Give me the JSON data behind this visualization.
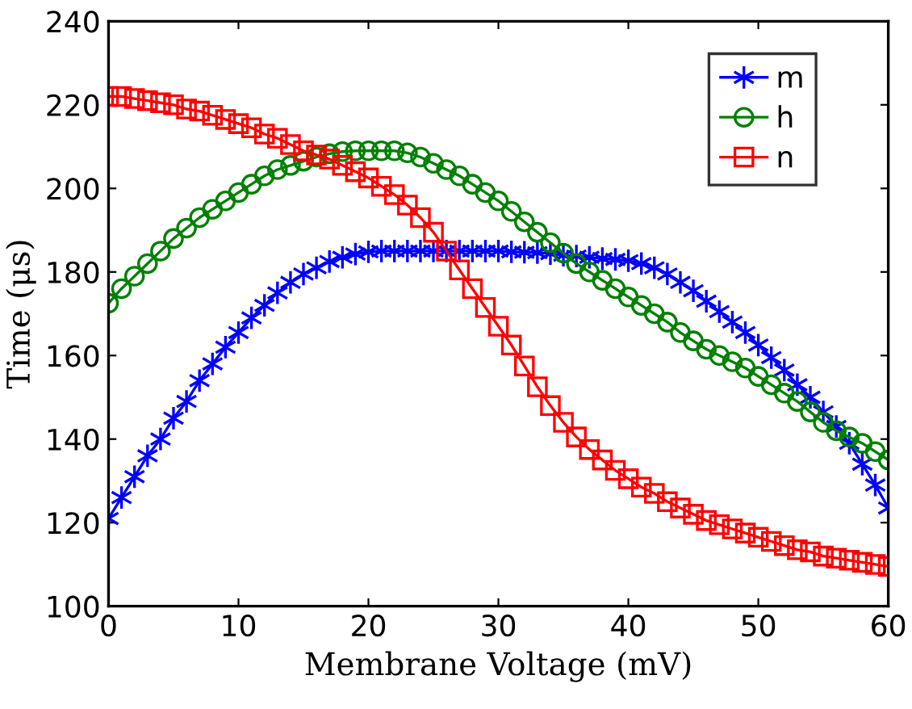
{
  "chart_data": {
    "type": "line",
    "xlabel": "Membrane Voltage (mV)",
    "ylabel": "Time (μs)",
    "x": [
      0,
      1,
      2,
      3,
      4,
      5,
      6,
      7,
      8,
      9,
      10,
      11,
      12,
      13,
      14,
      15,
      16,
      17,
      18,
      19,
      20,
      21,
      22,
      23,
      24,
      25,
      26,
      27,
      28,
      29,
      30,
      31,
      32,
      33,
      34,
      35,
      36,
      37,
      38,
      39,
      40,
      41,
      42,
      43,
      44,
      45,
      46,
      47,
      48,
      49,
      50,
      51,
      52,
      53,
      54,
      55,
      56,
      57,
      58,
      59,
      60
    ],
    "xlim": [
      0,
      60
    ],
    "xticks": [
      0,
      10,
      20,
      30,
      40,
      50,
      60
    ],
    "ylim": [
      100,
      240
    ],
    "yticks": [
      100,
      120,
      140,
      160,
      180,
      200,
      220,
      240
    ],
    "grid": false,
    "legend": "top right",
    "line_style": "solid",
    "series": [
      {
        "name": "m",
        "color": "#0000ff",
        "marker": "cross",
        "values": [
          121,
          126,
          131,
          136,
          140,
          145,
          149,
          154,
          158,
          162,
          165.5,
          169,
          172,
          175,
          177.5,
          179.5,
          181,
          182.5,
          183.5,
          184.3,
          184.8,
          185,
          185,
          185,
          185,
          185,
          185,
          185,
          185,
          185,
          185,
          184.8,
          184.7,
          184.6,
          184.4,
          184,
          183.8,
          183.5,
          183.2,
          183,
          182.7,
          182,
          181,
          179.5,
          177.5,
          175.5,
          173,
          170.5,
          168,
          165.5,
          162.5,
          159.5,
          156.5,
          153,
          150,
          146.5,
          143,
          139,
          134,
          129,
          123.5
        ]
      },
      {
        "name": "h",
        "color": "#008000",
        "marker": "circle",
        "values": [
          172.5,
          176,
          179,
          182,
          185,
          188,
          190.5,
          193,
          195,
          197,
          199,
          201,
          203,
          204.5,
          205.5,
          206.5,
          207.5,
          208.3,
          208.8,
          209,
          209,
          209,
          209,
          208.5,
          207.5,
          206,
          204.5,
          203,
          201,
          199,
          197,
          194.5,
          192,
          189.5,
          187,
          184.5,
          182,
          180,
          178,
          176,
          174,
          172,
          170,
          168,
          165.5,
          163.5,
          161.5,
          160,
          158.5,
          157,
          155,
          153,
          151,
          149,
          146.5,
          144,
          142,
          140.5,
          139,
          137,
          135
        ]
      },
      {
        "name": "n",
        "color": "#ff0000",
        "marker": "square",
        "values": [
          222,
          222,
          221.5,
          221,
          220.5,
          220,
          219,
          218.5,
          217.5,
          216.5,
          215.5,
          214.5,
          213,
          212,
          210.5,
          209,
          208,
          207,
          205.5,
          204,
          202.5,
          200.5,
          198.5,
          196,
          193,
          189.5,
          185,
          180.5,
          176,
          171.5,
          167,
          162.5,
          157.5,
          152.5,
          148,
          144,
          140.5,
          137.5,
          135,
          132.5,
          130.5,
          128.5,
          127,
          125,
          123.5,
          122,
          120.5,
          119.5,
          118.5,
          117.5,
          116.5,
          115.5,
          114.5,
          113.5,
          113,
          112,
          111.5,
          111,
          110.5,
          110,
          109.5
        ]
      }
    ]
  }
}
